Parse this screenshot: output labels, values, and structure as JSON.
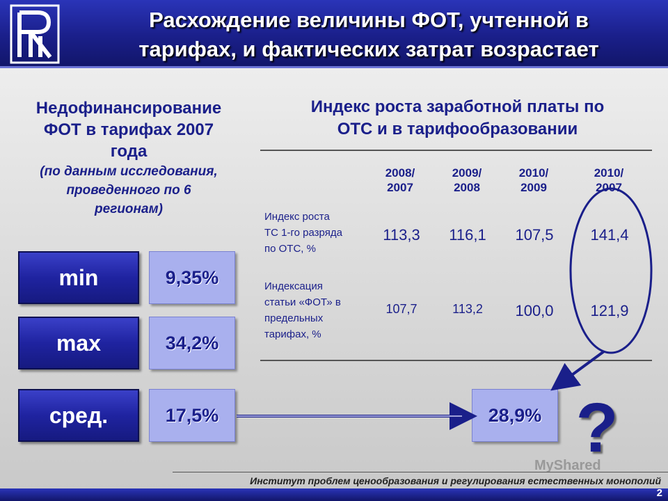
{
  "title": {
    "line1": "Расхождение величины ФОТ, учтенной в",
    "line2": "тарифах, и фактических затрат возрастает"
  },
  "left_heading": {
    "line1": "Недофинансирование",
    "line2": "ФОТ в тарифах 2007",
    "line3": "года",
    "note1": "(по данным исследования,",
    "note2": "проведенного по 6",
    "note3": "регионам)"
  },
  "right_heading": {
    "line1": "Индекс роста заработной платы по",
    "line2": "ОТС и в тарифообразовании"
  },
  "table": {
    "columns": [
      {
        "top": "2008/",
        "bottom": "2007"
      },
      {
        "top": "2009/",
        "bottom": "2008"
      },
      {
        "top": "2010/",
        "bottom": "2009"
      },
      {
        "top": "2010/",
        "bottom": "2007"
      }
    ],
    "rows": [
      {
        "label1": "Индекс роста",
        "label2": "ТС 1-го разряда",
        "label3": "по ОТС, %",
        "label4": "",
        "values": [
          "113,3",
          "116,1",
          "107,5",
          "141,4"
        ]
      },
      {
        "label1": "Индексация",
        "label2": "статьи «ФОТ» в",
        "label3": "предельных",
        "label4": "тарифах, %",
        "values": [
          "107,7",
          "113,2",
          "100,0",
          "121,9"
        ]
      }
    ]
  },
  "stats": [
    {
      "label": "min",
      "value": "9,35%"
    },
    {
      "label": "max",
      "value": "34,2%"
    },
    {
      "label": "сред.",
      "value": "17,5%"
    }
  ],
  "result_value": "28,9%",
  "question_mark": "?",
  "footer": "Институт проблем ценообразования и регулирования естественных монополий",
  "page_number": "2",
  "watermark": "MyShared",
  "colors": {
    "brand_blue": "#1a1f8a",
    "header_blue": "#2a34b8",
    "value_box": "#a9b0ee"
  }
}
